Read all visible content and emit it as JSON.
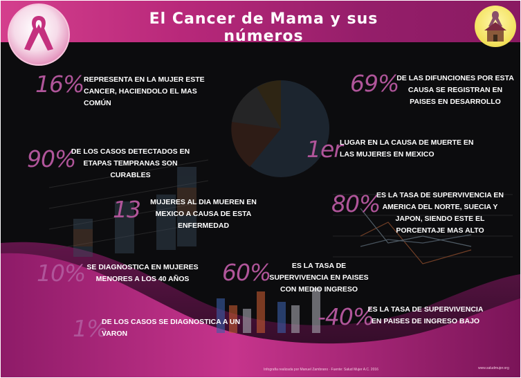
{
  "header": {
    "title": "El Cancer de Mama y sus números",
    "ribbon_icon": "pink-ribbon-icon",
    "house_icon": "house-ribbon-icon"
  },
  "colors": {
    "accent": "#b0559a",
    "header": "#b8287a",
    "background": "#0c0c0e",
    "wave": "#a01f73"
  },
  "stats": [
    {
      "value": "16%",
      "text": "Representa en la mujer este cancer, haciendolo el mas común"
    },
    {
      "value": "69%",
      "text": "De las difunciones por esta causa se registran en paises en desarrollo"
    },
    {
      "value": "90%",
      "text": "de los casos detectados en etapas tempranas son curables"
    },
    {
      "value": "1er",
      "text": "Lugar en la causa de muerte en las mujeres en Mexico"
    },
    {
      "value": "13",
      "text": "Mujeres al dia mueren en Mexico a causa de esta enfermedad"
    },
    {
      "value": "80%",
      "text": "Es la tasa de supervivencia en America del Norte, Suecia y Japon, siendo este el porcentaje mas alto"
    },
    {
      "value": "10%",
      "text": "Se diagnostica en mujeres menores a los 40 años"
    },
    {
      "value": "60%",
      "text": "Es la tasa de supervivencia en paises con medio ingreso"
    },
    {
      "value": "-40%",
      "text": "Es la tasa de supervivencia en paises de ingreso bajo"
    },
    {
      "value": "1%",
      "text": "De los casos se diagnostica a un varon"
    }
  ],
  "footer": {
    "credits": "Infografia realizada por Manuel Zambrano · Fuente: Salud Mujer A.C. 2016",
    "site": "www.saludmujer.org"
  }
}
